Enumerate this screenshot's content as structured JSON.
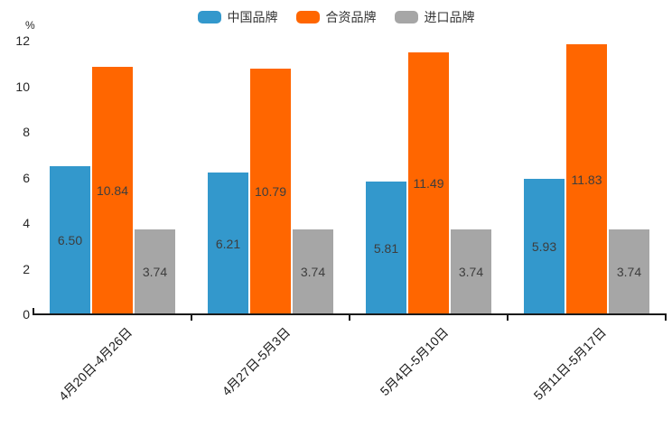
{
  "chart_data": {
    "type": "bar",
    "title": "",
    "xlabel": "",
    "ylabel": "%",
    "ylim": [
      0,
      12
    ],
    "yticks": [
      0,
      2,
      4,
      6,
      8,
      10,
      12
    ],
    "grid": false,
    "legend_position": "top",
    "value_label_decimals": 2,
    "categories": [
      "4月20日-4月26日",
      "4月27日-5月3日",
      "5月4日-5月10日",
      "5月11日-5月17日"
    ],
    "series": [
      {
        "name": "中国品牌",
        "color": "#3398CC",
        "values": [
          6.5,
          6.21,
          5.81,
          5.93
        ]
      },
      {
        "name": "合资品牌",
        "color": "#FF6600",
        "values": [
          10.84,
          10.79,
          11.49,
          11.83
        ]
      },
      {
        "name": "进口品牌",
        "color": "#A6A6A6",
        "values": [
          3.74,
          3.74,
          3.74,
          3.74
        ]
      }
    ],
    "colors": {
      "axis": "#1a1a1a",
      "tick_label": "#262626",
      "bar_value_label": "#3d3d3d"
    }
  }
}
